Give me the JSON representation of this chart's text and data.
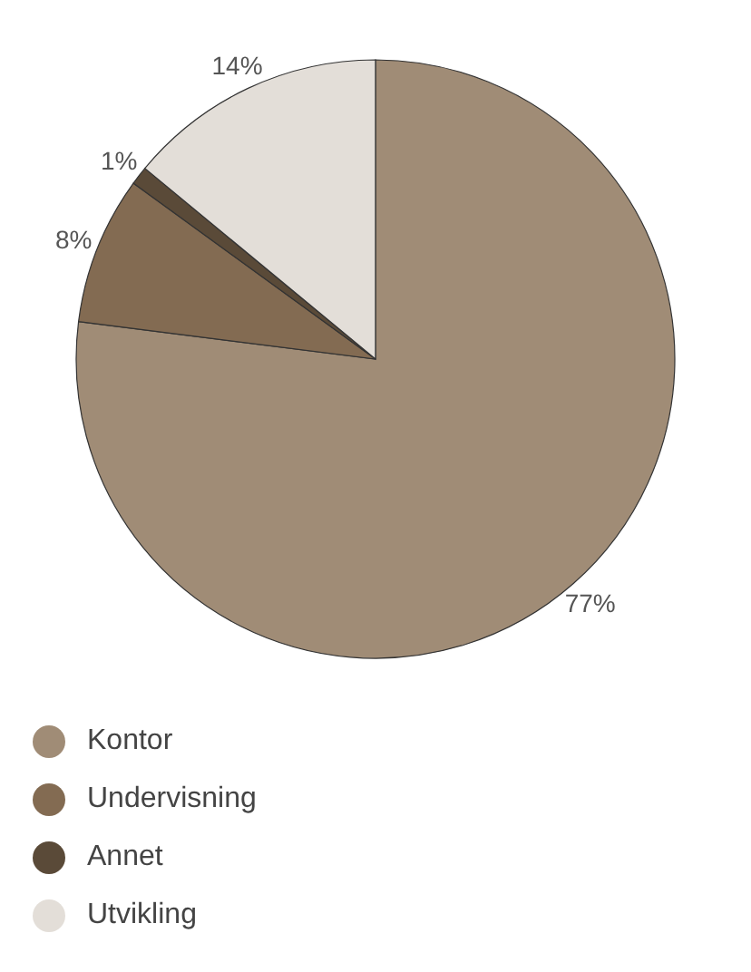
{
  "chart_data": {
    "type": "pie",
    "categories": [
      "Kontor",
      "Undervisning",
      "Annet",
      "Utvikling"
    ],
    "values": [
      77,
      8,
      1,
      14
    ],
    "colors": [
      "#a08c76",
      "#836b52",
      "#5a4a38",
      "#e3ded8"
    ],
    "value_labels": [
      "77%",
      "8%",
      "1%",
      "14%"
    ],
    "legend": "bottom left"
  }
}
